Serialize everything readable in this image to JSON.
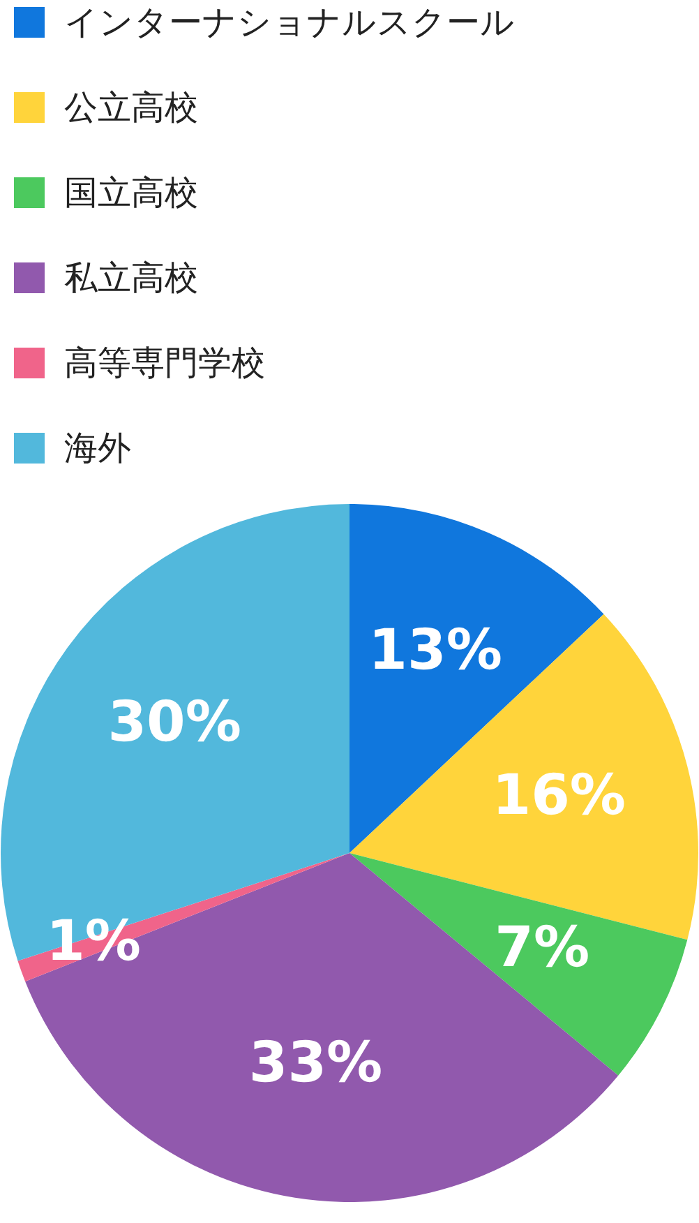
{
  "chart_data": {
    "type": "pie",
    "categories": [
      "インターナショナルスクール",
      "公立高校",
      "国立高校",
      "私立高校",
      "高等専門学校",
      "海外"
    ],
    "values": [
      13,
      16,
      7,
      33,
      1,
      30
    ],
    "colors": [
      "#1077dd",
      "#ffd43b",
      "#4cc95e",
      "#9159ad",
      "#f0648a",
      "#52b8dc"
    ],
    "value_labels": [
      "13%",
      "16%",
      "7%",
      "33%",
      "1%",
      "30%"
    ],
    "legend": "top"
  }
}
